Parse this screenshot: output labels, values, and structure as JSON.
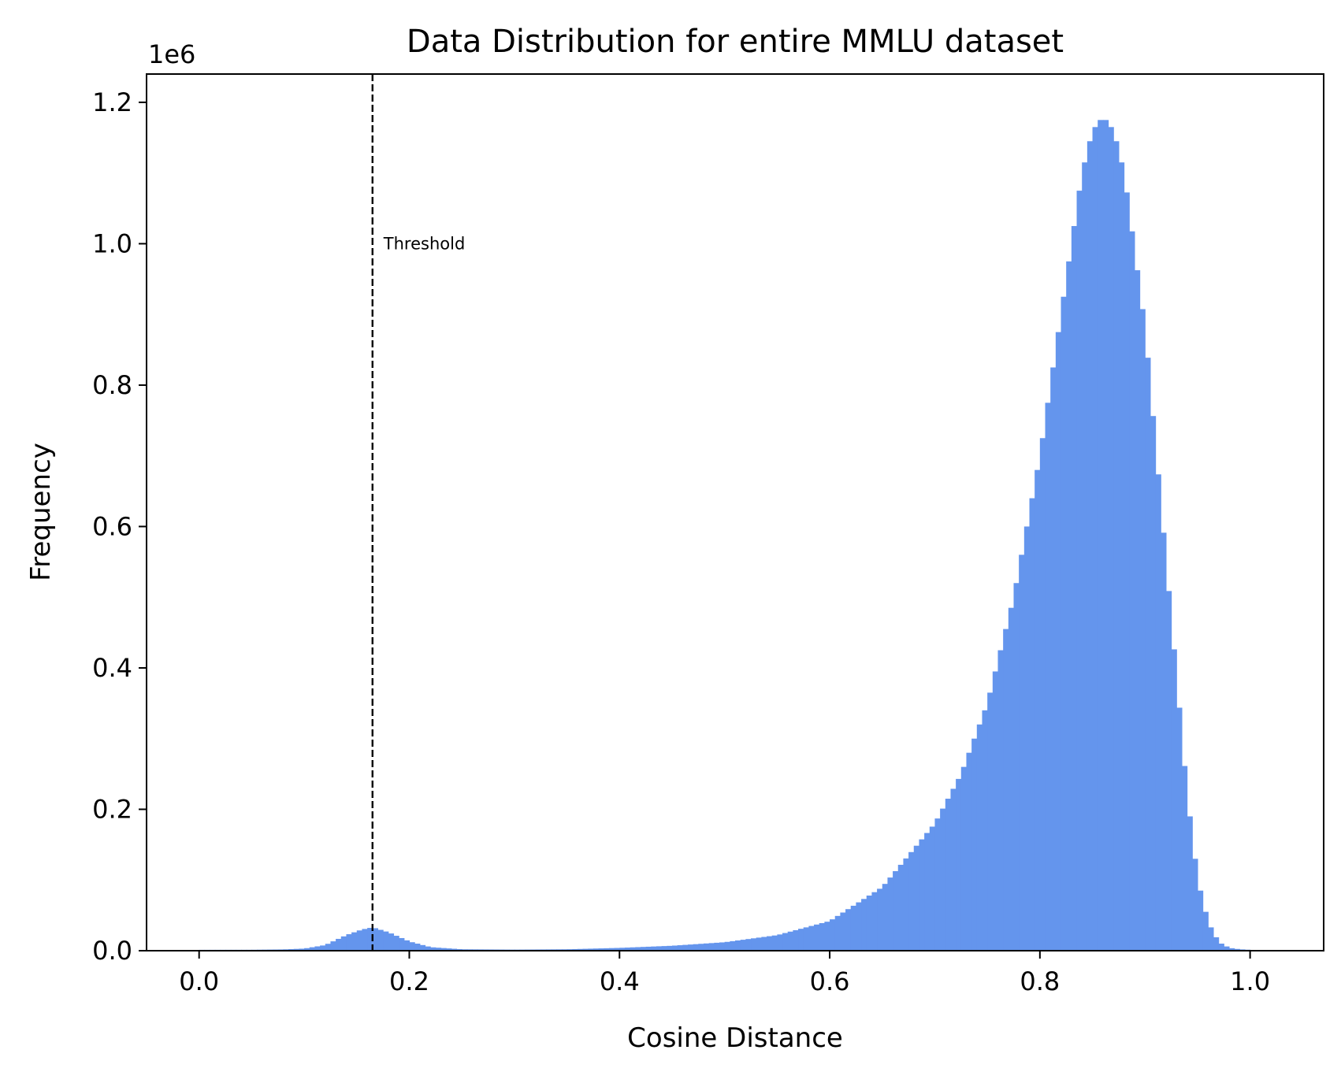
{
  "chart_data": {
    "type": "histogram",
    "title": "Data Distribution for entire MMLU dataset",
    "xlabel": "Cosine Distance",
    "ylabel": "Frequency",
    "y_offset_label": "1e6",
    "xlim": [
      -0.05,
      1.07
    ],
    "ylim": [
      0,
      1.24
    ],
    "y_unit_scale": 1000000,
    "x_ticks": [
      0.0,
      0.2,
      0.4,
      0.6,
      0.8,
      1.0
    ],
    "x_tick_labels": [
      "0.0",
      "0.2",
      "0.4",
      "0.6",
      "0.8",
      "1.0"
    ],
    "y_ticks": [
      0.0,
      0.2,
      0.4,
      0.6,
      0.8,
      1.0,
      1.2
    ],
    "y_tick_labels": [
      "0.0",
      "0.2",
      "0.4",
      "0.6",
      "0.8",
      "1.0",
      "1.2"
    ],
    "bar_color": "#6495ED",
    "grid": false,
    "bin_width": 0.005,
    "bin_range": [
      0.0,
      1.02
    ],
    "distribution_points": [
      {
        "x": 0.0,
        "y": 0.0012
      },
      {
        "x": 0.05,
        "y": 0.0013
      },
      {
        "x": 0.08,
        "y": 0.0018
      },
      {
        "x": 0.1,
        "y": 0.003
      },
      {
        "x": 0.12,
        "y": 0.008
      },
      {
        "x": 0.14,
        "y": 0.022
      },
      {
        "x": 0.155,
        "y": 0.03
      },
      {
        "x": 0.165,
        "y": 0.033
      },
      {
        "x": 0.18,
        "y": 0.026
      },
      {
        "x": 0.2,
        "y": 0.013
      },
      {
        "x": 0.22,
        "y": 0.005
      },
      {
        "x": 0.25,
        "y": 0.002
      },
      {
        "x": 0.3,
        "y": 0.0015
      },
      {
        "x": 0.35,
        "y": 0.002
      },
      {
        "x": 0.4,
        "y": 0.004
      },
      {
        "x": 0.45,
        "y": 0.007
      },
      {
        "x": 0.5,
        "y": 0.012
      },
      {
        "x": 0.55,
        "y": 0.022
      },
      {
        "x": 0.6,
        "y": 0.042
      },
      {
        "x": 0.65,
        "y": 0.09
      },
      {
        "x": 0.7,
        "y": 0.18
      },
      {
        "x": 0.725,
        "y": 0.25
      },
      {
        "x": 0.75,
        "y": 0.35
      },
      {
        "x": 0.775,
        "y": 0.5
      },
      {
        "x": 0.8,
        "y": 0.7
      },
      {
        "x": 0.825,
        "y": 0.95
      },
      {
        "x": 0.84,
        "y": 1.1
      },
      {
        "x": 0.85,
        "y": 1.16
      },
      {
        "x": 0.86,
        "y": 1.18
      },
      {
        "x": 0.87,
        "y": 1.16
      },
      {
        "x": 0.88,
        "y": 1.1
      },
      {
        "x": 0.9,
        "y": 0.88
      },
      {
        "x": 0.92,
        "y": 0.55
      },
      {
        "x": 0.94,
        "y": 0.22
      },
      {
        "x": 0.95,
        "y": 0.1
      },
      {
        "x": 0.96,
        "y": 0.04
      },
      {
        "x": 0.97,
        "y": 0.012
      },
      {
        "x": 0.98,
        "y": 0.004
      },
      {
        "x": 0.99,
        "y": 0.002
      },
      {
        "x": 1.0,
        "y": 0.0012
      },
      {
        "x": 1.02,
        "y": 0.0
      }
    ],
    "threshold": {
      "x": 0.165,
      "label": "Threshold",
      "label_y": 1.0,
      "line_style": "dashed",
      "color": "#000000"
    }
  }
}
